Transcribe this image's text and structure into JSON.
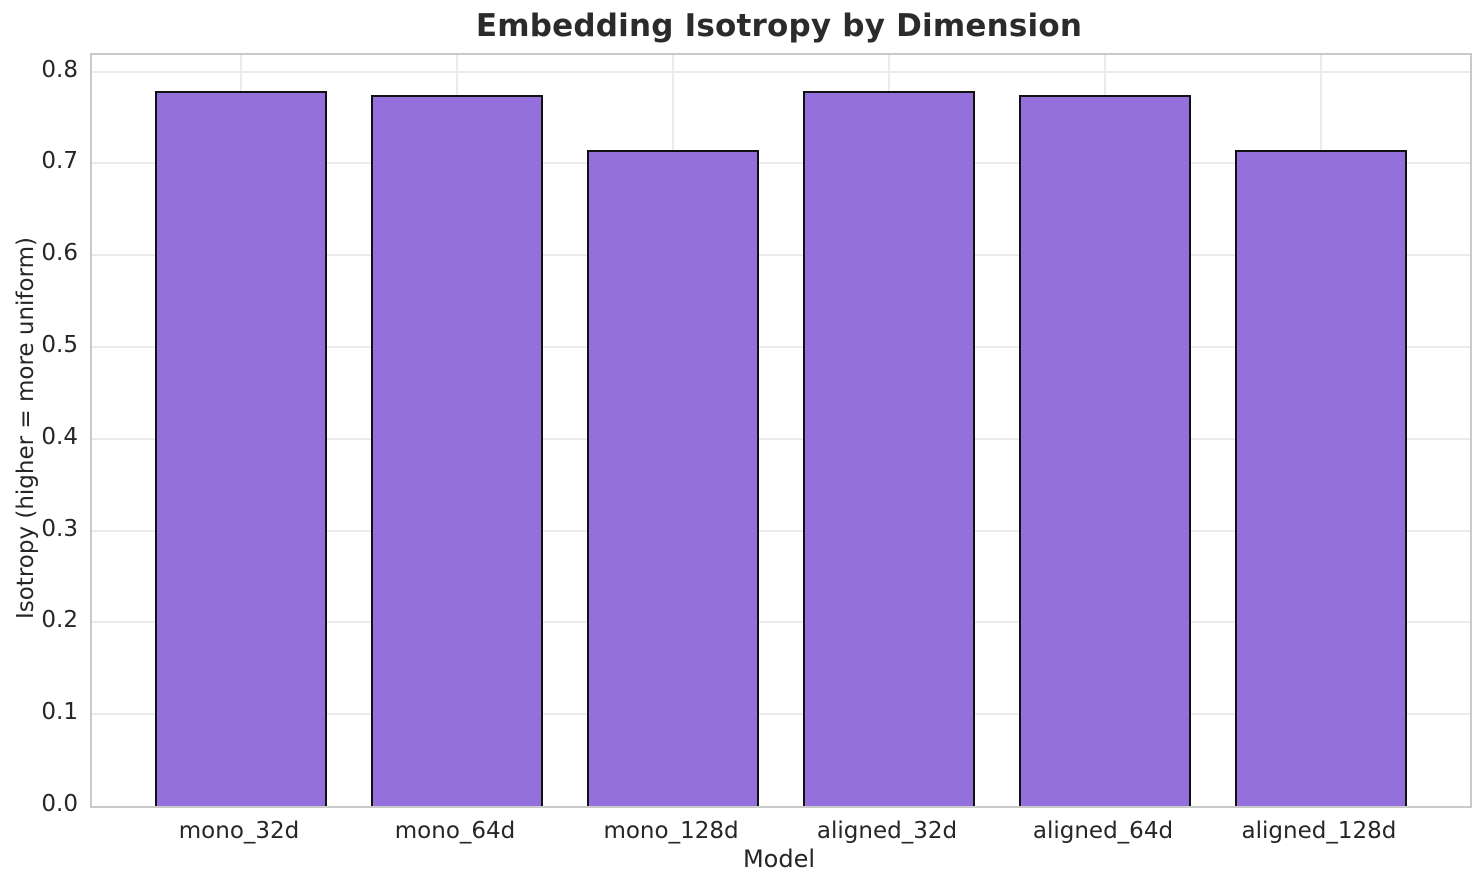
{
  "chart_data": {
    "type": "bar",
    "title": "Embedding Isotropy by Dimension",
    "xlabel": "Model",
    "ylabel": "Isotropy (higher = more uniform)",
    "categories": [
      "mono_32d",
      "mono_64d",
      "mono_128d",
      "aligned_32d",
      "aligned_64d",
      "aligned_128d"
    ],
    "values": [
      0.779,
      0.774,
      0.715,
      0.779,
      0.774,
      0.715
    ],
    "ylim": [
      0,
      0.818
    ],
    "yticks": [
      0.0,
      0.1,
      0.2,
      0.3,
      0.4,
      0.5,
      0.6,
      0.7,
      0.8
    ],
    "ytick_labels": [
      "0.0",
      "0.1",
      "0.2",
      "0.3",
      "0.4",
      "0.5",
      "0.6",
      "0.7",
      "0.8"
    ],
    "grid": true,
    "legend": null,
    "bar_width_fraction": 0.8,
    "colors": {
      "bar_fill": "#9370DB",
      "bar_edge": "#111111",
      "grid": "#ebebeb",
      "spine": "#c9c9c9",
      "title_text": "#2b2b2b",
      "tick_text": "#262626",
      "background": "#ffffff"
    }
  }
}
